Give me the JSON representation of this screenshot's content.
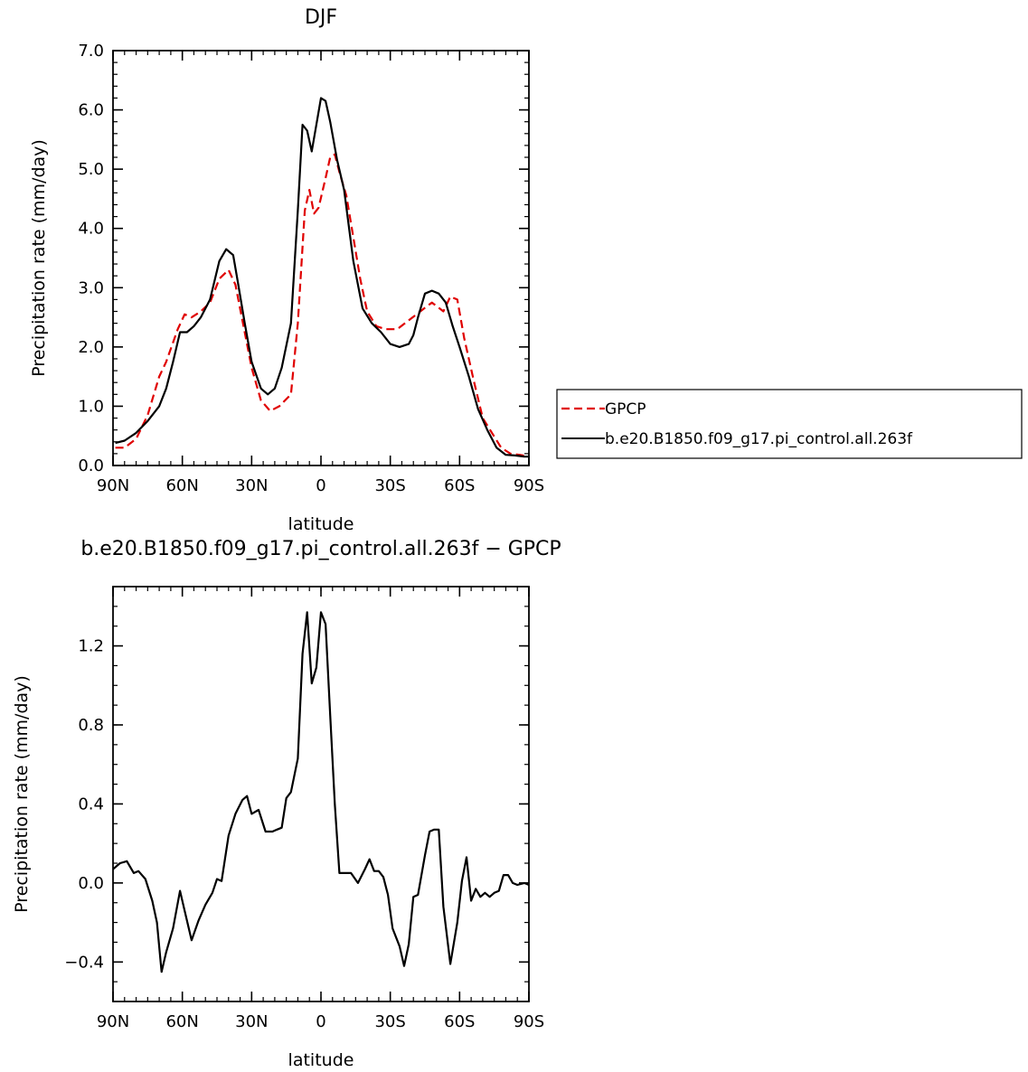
{
  "chart_data": [
    {
      "type": "line",
      "title": "DJF",
      "xlabel": "latitude",
      "ylabel": "Precipitation rate (mm/day)",
      "xlim": [
        -90,
        90
      ],
      "ylim": [
        0,
        7
      ],
      "x_ticks": [
        -90,
        -60,
        -30,
        0,
        30,
        60,
        90
      ],
      "x_tick_labels": [
        "90N",
        "60N",
        "30N",
        "0",
        "30S",
        "60S",
        "90S"
      ],
      "y_ticks": [
        0,
        1,
        2,
        3,
        4,
        5,
        6,
        7
      ],
      "y_tick_labels": [
        "0.0",
        "1.0",
        "2.0",
        "3.0",
        "4.0",
        "5.0",
        "6.0",
        "7.0"
      ],
      "legend_position": "right",
      "series": [
        {
          "name": "GPCP",
          "color": "#e00000",
          "dash": "dashed",
          "x": [
            -89,
            -85,
            -80,
            -75,
            -70,
            -67,
            -62,
            -59,
            -56,
            -52,
            -48,
            -44,
            -40,
            -37,
            -34,
            -30,
            -26,
            -22,
            -18,
            -13,
            -10,
            -7,
            -5,
            -3,
            -1,
            2,
            4,
            6,
            8,
            11,
            14,
            17,
            20,
            24,
            28,
            33,
            38,
            43,
            48,
            53,
            56,
            59,
            62,
            66,
            70,
            74,
            78,
            82,
            86,
            90
          ],
          "values": [
            0.3,
            0.3,
            0.45,
            0.85,
            1.5,
            1.75,
            2.3,
            2.55,
            2.5,
            2.6,
            2.75,
            3.15,
            3.3,
            3.05,
            2.45,
            1.65,
            1.1,
            0.92,
            1.0,
            1.2,
            2.4,
            4.3,
            4.65,
            4.25,
            4.35,
            4.85,
            5.2,
            5.25,
            4.95,
            4.55,
            3.85,
            3.15,
            2.6,
            2.35,
            2.3,
            2.3,
            2.45,
            2.6,
            2.75,
            2.6,
            2.85,
            2.8,
            2.15,
            1.45,
            0.8,
            0.55,
            0.3,
            0.2,
            0.18,
            0.15
          ]
        },
        {
          "name": "b.e20.B1850.f09_g17.pi_control.all.263f",
          "color": "#000000",
          "dash": "solid",
          "x": [
            -89,
            -85,
            -80,
            -75,
            -70,
            -67,
            -64,
            -61,
            -58,
            -55,
            -52,
            -48,
            -44,
            -41,
            -38,
            -36,
            -33,
            -30,
            -26,
            -23,
            -20,
            -17,
            -13,
            -10,
            -8,
            -6,
            -4,
            -2,
            0,
            2,
            4,
            7,
            10,
            14,
            18,
            22,
            26,
            30,
            34,
            38,
            40,
            42,
            45,
            48,
            51,
            54,
            57,
            60,
            64,
            68,
            72,
            76,
            80,
            84,
            88,
            90
          ],
          "values": [
            0.38,
            0.42,
            0.55,
            0.75,
            1.0,
            1.3,
            1.75,
            2.25,
            2.25,
            2.35,
            2.5,
            2.8,
            3.45,
            3.65,
            3.55,
            3.1,
            2.4,
            1.75,
            1.3,
            1.2,
            1.3,
            1.65,
            2.4,
            4.3,
            5.75,
            5.65,
            5.3,
            5.75,
            6.2,
            6.15,
            5.8,
            5.15,
            4.65,
            3.45,
            2.65,
            2.4,
            2.25,
            2.05,
            2.0,
            2.05,
            2.2,
            2.5,
            2.9,
            2.95,
            2.9,
            2.75,
            2.35,
            2.0,
            1.5,
            0.95,
            0.6,
            0.3,
            0.18,
            0.17,
            0.15,
            0.15
          ]
        }
      ]
    },
    {
      "type": "line",
      "title": "b.e20.B1850.f09_g17.pi_control.all.263f  −  GPCP",
      "xlabel": "latitude",
      "ylabel": "Precipitation rate (mm/day)",
      "xlim": [
        -90,
        90
      ],
      "ylim": [
        -0.6,
        1.5
      ],
      "x_ticks": [
        -90,
        -60,
        -30,
        0,
        30,
        60,
        90
      ],
      "x_tick_labels": [
        "90N",
        "60N",
        "30N",
        "0",
        "30S",
        "60S",
        "90S"
      ],
      "y_ticks": [
        -0.4,
        0.0,
        0.4,
        0.8,
        1.2
      ],
      "y_tick_labels": [
        "−0.4",
        "0.0",
        "0.4",
        "0.8",
        "1.2"
      ],
      "series": [
        {
          "name": "",
          "color": "#000000",
          "dash": "solid",
          "x": [
            -90,
            -87,
            -84,
            -81,
            -79,
            -76,
            -73,
            -71,
            -69,
            -67,
            -64,
            -61,
            -59,
            -56,
            -53,
            -50,
            -47,
            -45,
            -43,
            -40,
            -37,
            -34,
            -32,
            -30,
            -27,
            -24,
            -21,
            -19,
            -17,
            -15,
            -13,
            -10,
            -8,
            -6,
            -4,
            -2,
            0,
            2,
            4,
            6,
            8,
            10,
            13,
            16,
            19,
            21,
            23,
            25,
            27,
            29,
            31,
            34,
            36,
            38,
            40,
            42,
            45,
            47,
            49,
            51,
            53,
            56,
            59,
            61,
            63,
            65,
            67,
            69,
            71,
            73,
            75,
            77,
            79,
            81,
            83,
            85,
            88,
            90
          ],
          "values": [
            0.07,
            0.1,
            0.11,
            0.05,
            0.06,
            0.02,
            -0.09,
            -0.2,
            -0.45,
            -0.35,
            -0.23,
            -0.04,
            -0.14,
            -0.29,
            -0.19,
            -0.11,
            -0.05,
            0.02,
            0.01,
            0.24,
            0.35,
            0.42,
            0.44,
            0.35,
            0.37,
            0.26,
            0.26,
            0.27,
            0.28,
            0.43,
            0.46,
            0.63,
            1.16,
            1.37,
            1.01,
            1.09,
            1.37,
            1.31,
            0.85,
            0.4,
            0.05,
            0.05,
            0.05,
            0.0,
            0.07,
            0.12,
            0.06,
            0.06,
            0.03,
            -0.06,
            -0.23,
            -0.32,
            -0.42,
            -0.31,
            -0.07,
            -0.06,
            0.14,
            0.26,
            0.27,
            0.27,
            -0.12,
            -0.41,
            -0.2,
            0.01,
            0.13,
            -0.09,
            -0.03,
            -0.07,
            -0.05,
            -0.07,
            -0.05,
            -0.04,
            0.04,
            0.04,
            0.0,
            -0.01,
            0.0,
            -0.01
          ]
        }
      ]
    }
  ]
}
